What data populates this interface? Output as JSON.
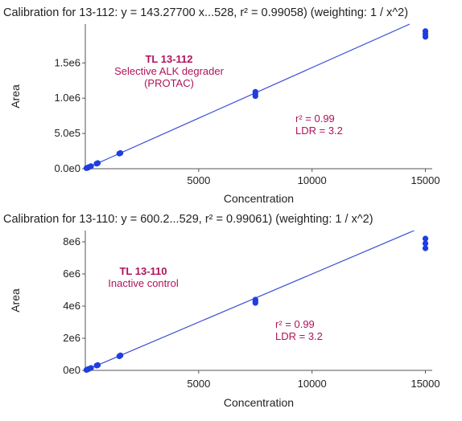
{
  "chart_data": [
    {
      "type": "scatter",
      "title": "Calibration for 13-112: y = 143.27700 x...528, r² = 0.99058)  (weighting: 1 / x^2)",
      "xlabel": "Concentration",
      "ylabel": "Area",
      "xlim": [
        0,
        15300
      ],
      "ylim": [
        0,
        2050000
      ],
      "x_ticks": [
        5000,
        10000,
        15000
      ],
      "x_tick_labels": [
        "5000",
        "10000",
        "15000"
      ],
      "y_ticks": [
        0,
        500000,
        1000000,
        1500000
      ],
      "y_tick_labels": [
        "0.0e0",
        "5.0e5",
        "1.0e6",
        "1.5e6"
      ],
      "fit_line": {
        "x": [
          0,
          15000
        ],
        "y": [
          0,
          2150000
        ]
      },
      "points": [
        {
          "x": 50,
          "y": 8000
        },
        {
          "x": 100,
          "y": 14000
        },
        {
          "x": 150,
          "y": 21000
        },
        {
          "x": 250,
          "y": 36000
        },
        {
          "x": 500,
          "y": 72000
        },
        {
          "x": 550,
          "y": 80000
        },
        {
          "x": 1500,
          "y": 215000
        },
        {
          "x": 1550,
          "y": 222000
        },
        {
          "x": 7500,
          "y": 1030000
        },
        {
          "x": 7500,
          "y": 1060000
        },
        {
          "x": 7500,
          "y": 1090000
        },
        {
          "x": 15000,
          "y": 1870000
        },
        {
          "x": 15000,
          "y": 1910000
        },
        {
          "x": 15000,
          "y": 1950000
        }
      ],
      "annotation": {
        "title": "TL 13-112",
        "lines": [
          "Selective ALK degrader",
          "(PROTAC)"
        ]
      },
      "stats": {
        "r2": "r² = 0.99",
        "ldr": "LDR = 3.2"
      },
      "colors": {
        "points": "#1f3de0",
        "line": "#3a4fd8",
        "annotation": "#b0135c"
      }
    },
    {
      "type": "scatter",
      "title": "Calibration for 13-110: y = 600.2...529, r² = 0.99061)  (weighting: 1 / x^2)",
      "xlabel": "Concentration",
      "ylabel": "Area",
      "xlim": [
        0,
        15300
      ],
      "ylim": [
        0,
        8700000
      ],
      "x_ticks": [
        5000,
        10000,
        15000
      ],
      "x_tick_labels": [
        "5000",
        "10000",
        "15000"
      ],
      "y_ticks": [
        0,
        2000000,
        4000000,
        6000000,
        8000000
      ],
      "y_tick_labels": [
        "0e0",
        "2e6",
        "4e6",
        "6e6",
        "8e6"
      ],
      "fit_line": {
        "x": [
          0,
          15000
        ],
        "y": [
          0,
          9000000
        ]
      },
      "points": [
        {
          "x": 50,
          "y": 30000
        },
        {
          "x": 100,
          "y": 60000
        },
        {
          "x": 150,
          "y": 90000
        },
        {
          "x": 250,
          "y": 150000
        },
        {
          "x": 500,
          "y": 300000
        },
        {
          "x": 550,
          "y": 330000
        },
        {
          "x": 1500,
          "y": 880000
        },
        {
          "x": 1550,
          "y": 930000
        },
        {
          "x": 7500,
          "y": 4200000
        },
        {
          "x": 7500,
          "y": 4300000
        },
        {
          "x": 7500,
          "y": 4400000
        },
        {
          "x": 15000,
          "y": 7600000
        },
        {
          "x": 15000,
          "y": 7900000
        },
        {
          "x": 15000,
          "y": 8200000
        }
      ],
      "annotation": {
        "title": "TL 13-110",
        "lines": [
          "Inactive control"
        ]
      },
      "stats": {
        "r2": "r² = 0.99",
        "ldr": "LDR = 3.2"
      },
      "colors": {
        "points": "#1f3de0",
        "line": "#3a4fd8",
        "annotation": "#b0135c"
      }
    }
  ]
}
